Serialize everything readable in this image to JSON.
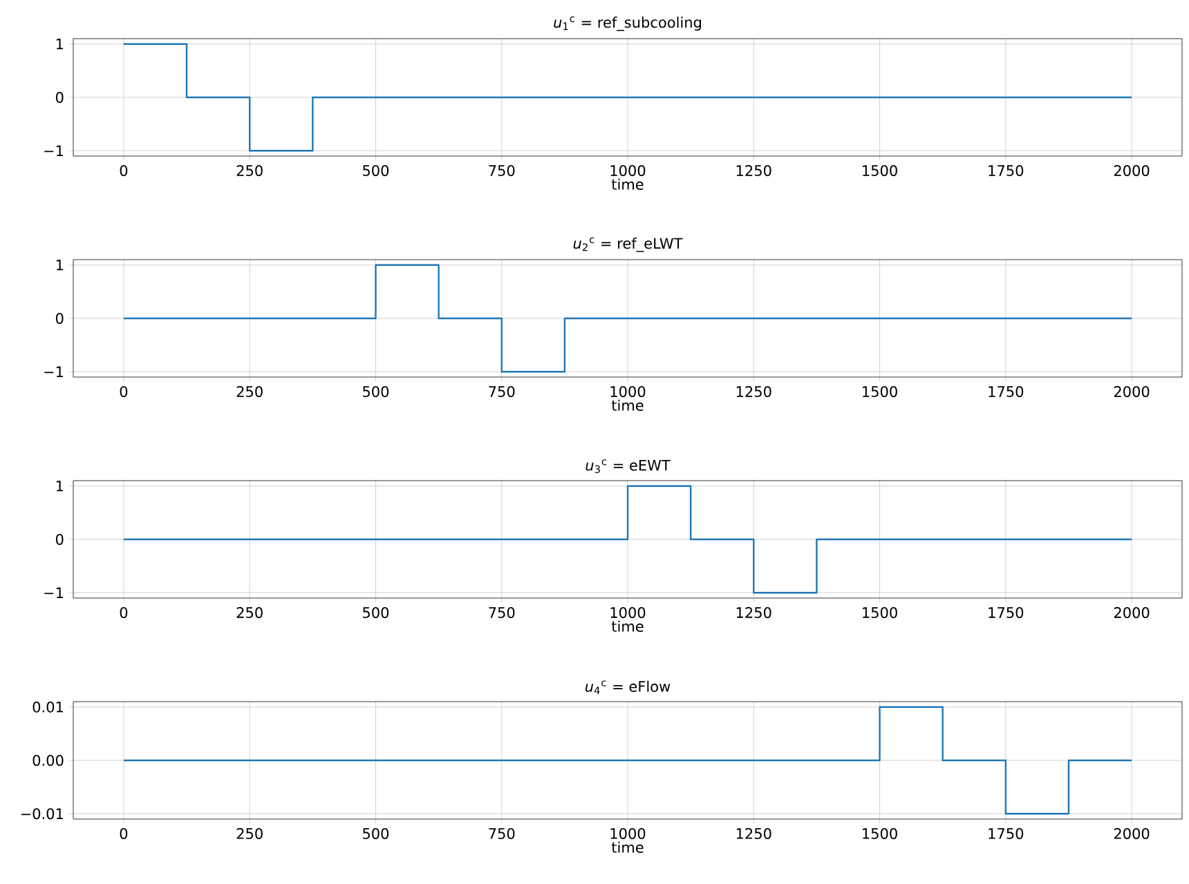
{
  "chart_data": [
    {
      "type": "step",
      "title": "*u*$_{1}$$^{c}$ = ref_subcooling",
      "xlabel": "time",
      "x": [
        0,
        125,
        250,
        375,
        2000
      ],
      "values": [
        1,
        0,
        -1,
        0,
        0
      ],
      "color": "#1f77b4",
      "xlim": [
        -100,
        2100
      ],
      "ylim": [
        -1.1,
        1.1
      ],
      "xticks": [
        0,
        250,
        500,
        750,
        1000,
        1250,
        1500,
        1750,
        2000
      ],
      "yticks": [
        {
          "value": -1,
          "label": "−1"
        },
        0,
        1
      ],
      "grid": true
    },
    {
      "type": "step",
      "title": "*u*$_{2}$$^{c}$ = ref_eLWT",
      "xlabel": "time",
      "x": [
        0,
        500,
        625,
        750,
        875,
        2000
      ],
      "values": [
        0,
        1,
        0,
        -1,
        0,
        0
      ],
      "color": "#1f77b4",
      "xlim": [
        -100,
        2100
      ],
      "ylim": [
        -1.1,
        1.1
      ],
      "xticks": [
        0,
        250,
        500,
        750,
        1000,
        1250,
        1500,
        1750,
        2000
      ],
      "yticks": [
        {
          "value": -1,
          "label": "−1"
        },
        0,
        1
      ],
      "grid": true
    },
    {
      "type": "step",
      "title": "*u*$_{3}$$^{c}$ = eEWT",
      "xlabel": "time",
      "x": [
        0,
        1000,
        1125,
        1250,
        1375,
        2000
      ],
      "values": [
        0,
        1,
        0,
        -1,
        0,
        0
      ],
      "color": "#1f77b4",
      "xlim": [
        -100,
        2100
      ],
      "ylim": [
        -1.1,
        1.1
      ],
      "xticks": [
        0,
        250,
        500,
        750,
        1000,
        1250,
        1500,
        1750,
        2000
      ],
      "yticks": [
        {
          "value": -1,
          "label": "−1"
        },
        0,
        1
      ],
      "grid": true
    },
    {
      "type": "step",
      "title": "*u*$_{4}$$^{c}$ = eFlow",
      "xlabel": "time",
      "x": [
        0,
        1500,
        1625,
        1750,
        1875,
        2000
      ],
      "values": [
        0,
        0.01,
        0,
        -0.01,
        0,
        0
      ],
      "color": "#1f77b4",
      "xlim": [
        -100,
        2100
      ],
      "ylim": [
        -0.011,
        0.011
      ],
      "xticks": [
        0,
        250,
        500,
        750,
        1000,
        1250,
        1500,
        1750,
        2000
      ],
      "yticks": [
        {
          "value": -0.01,
          "label": "−0.01"
        },
        {
          "value": 0,
          "label": "0.00"
        },
        {
          "value": 0.01,
          "label": "0.01"
        }
      ],
      "grid": true
    }
  ]
}
